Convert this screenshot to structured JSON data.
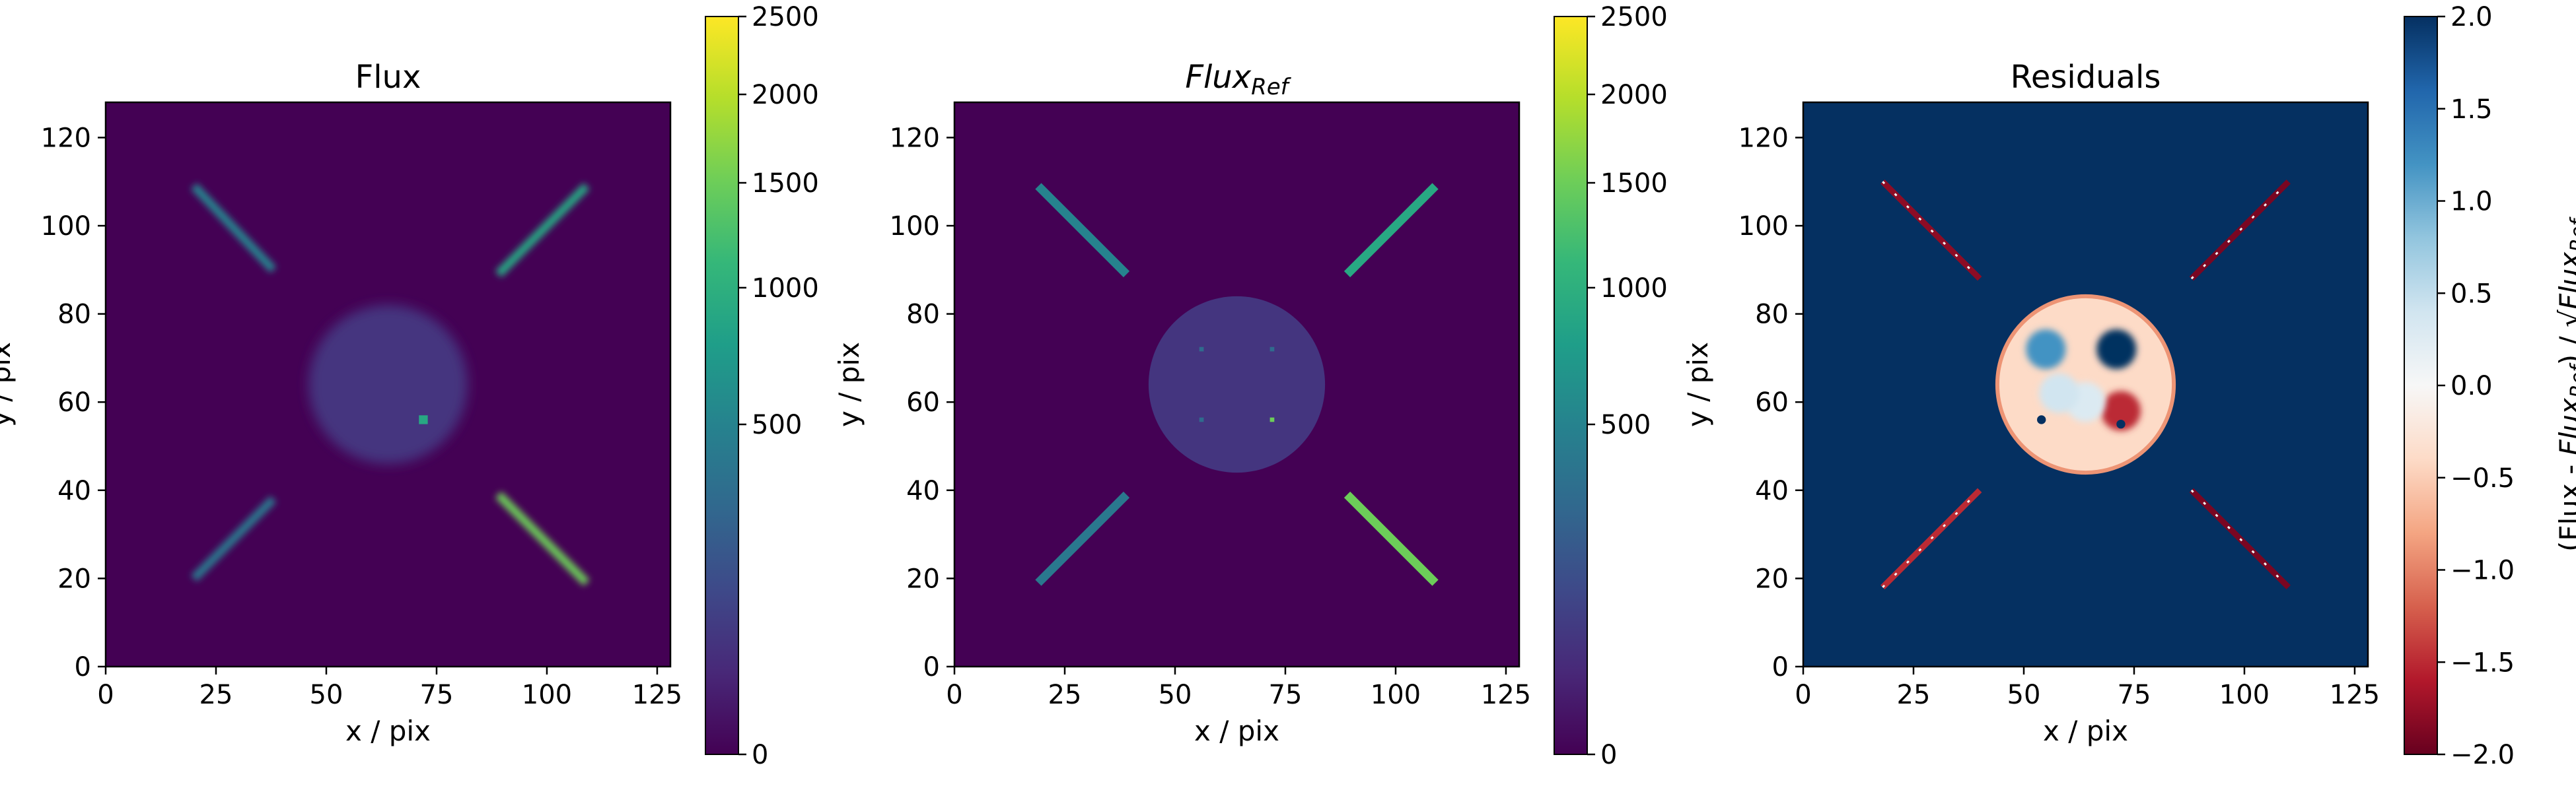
{
  "chart_data": [
    {
      "type": "heatmap",
      "title": "Flux",
      "xlabel": "x / pix",
      "ylabel": "y / pix",
      "xlim": [
        0,
        128
      ],
      "ylim": [
        0,
        128
      ],
      "xticks": [
        0,
        25,
        50,
        75,
        100,
        125
      ],
      "yticks": [
        0,
        20,
        40,
        60,
        80,
        100,
        120
      ],
      "colormap": "viridis",
      "color_scale": "sqrt",
      "vlim": [
        0,
        2500
      ],
      "colorbar_ticks": [
        0,
        500,
        1000,
        1500,
        2000,
        2500
      ],
      "features": {
        "disk": {
          "center": [
            64,
            64
          ],
          "radius": 18,
          "value": 60,
          "blurred": true
        },
        "bright_spot": {
          "x": 72,
          "y": 56,
          "value": 900
        },
        "streaks": [
          {
            "x": [
              20,
              38
            ],
            "y": [
              109,
              90
            ],
            "value": 500
          },
          {
            "x": [
              89,
              109
            ],
            "y": [
              89,
              109
            ],
            "value": 900
          },
          {
            "x": [
              20,
              38
            ],
            "y": [
              20,
              38
            ],
            "value": 400
          },
          {
            "x": [
              89,
              109
            ],
            "y": [
              39,
              19
            ],
            "value": 1500
          }
        ]
      }
    },
    {
      "type": "heatmap",
      "title_main": "Flux",
      "title_sub": "Ref",
      "xlabel": "x / pix",
      "ylabel": "y / pix",
      "xlim": [
        0,
        128
      ],
      "ylim": [
        0,
        128
      ],
      "xticks": [
        0,
        25,
        50,
        75,
        100,
        125
      ],
      "yticks": [
        0,
        20,
        40,
        60,
        80,
        100,
        120
      ],
      "colormap": "viridis",
      "color_scale": "sqrt",
      "vlim": [
        0,
        2500
      ],
      "colorbar_ticks": [
        0,
        500,
        1000,
        1500,
        2000,
        2500
      ],
      "features": {
        "disk": {
          "center": [
            64,
            64
          ],
          "radius": 20,
          "value": 60,
          "blurred": false
        },
        "dots": [
          {
            "x": 56,
            "y": 72,
            "value": 300
          },
          {
            "x": 72,
            "y": 72,
            "value": 300
          },
          {
            "x": 56,
            "y": 56,
            "value": 300
          },
          {
            "x": 72,
            "y": 56,
            "value": 1500
          }
        ],
        "streaks": [
          {
            "x": [
              19,
              39
            ],
            "y": [
              109,
              89
            ],
            "value": 500
          },
          {
            "x": [
              89,
              109
            ],
            "y": [
              89,
              109
            ],
            "value": 900
          },
          {
            "x": [
              19,
              39
            ],
            "y": [
              19,
              39
            ],
            "value": 400
          },
          {
            "x": [
              89,
              109
            ],
            "y": [
              39,
              19
            ],
            "value": 1500
          }
        ]
      }
    },
    {
      "type": "heatmap",
      "title": "Residuals",
      "xlabel": "x / pix",
      "ylabel": "y / pix",
      "xlim": [
        0,
        128
      ],
      "ylim": [
        0,
        128
      ],
      "xticks": [
        0,
        25,
        50,
        75,
        100,
        125
      ],
      "yticks": [
        0,
        20,
        40,
        60,
        80,
        100,
        120
      ],
      "colormap": "RdBu",
      "vlim": [
        -2.0,
        2.0
      ],
      "colorbar_ticks": [
        -2.0,
        -1.5,
        -1.0,
        -0.5,
        0.0,
        0.5,
        1.0,
        1.5,
        2.0
      ],
      "colorbar_label_parts": [
        "(Flux - ",
        "Flux",
        "Ref",
        ") / √",
        "Flux",
        "Ref"
      ],
      "background_value": 2.0,
      "features": {
        "disk": {
          "center": [
            64,
            64
          ],
          "radius": 20,
          "value": -0.4
        },
        "blobs": [
          {
            "x": 55,
            "y": 72,
            "value": 1.2
          },
          {
            "x": 71,
            "y": 72,
            "value": 2.0
          },
          {
            "x": 72,
            "y": 58,
            "value": -1.5
          },
          {
            "x": 64,
            "y": 60,
            "value": 0.3
          },
          {
            "x": 58,
            "y": 62,
            "value": 0.4
          },
          {
            "x": 54,
            "y": 56,
            "value": 2.0
          },
          {
            "x": 72,
            "y": 55,
            "value": 2.0
          }
        ],
        "streaks": [
          {
            "x": [
              18,
              40
            ],
            "y": [
              110,
              88
            ],
            "value": -1.8
          },
          {
            "x": [
              88,
              110
            ],
            "y": [
              88,
              110
            ],
            "value": -1.9
          },
          {
            "x": [
              18,
              40
            ],
            "y": [
              18,
              40
            ],
            "value": -1.5
          },
          {
            "x": [
              88,
              110
            ],
            "y": [
              40,
              18
            ],
            "value": -1.9
          }
        ]
      }
    }
  ]
}
